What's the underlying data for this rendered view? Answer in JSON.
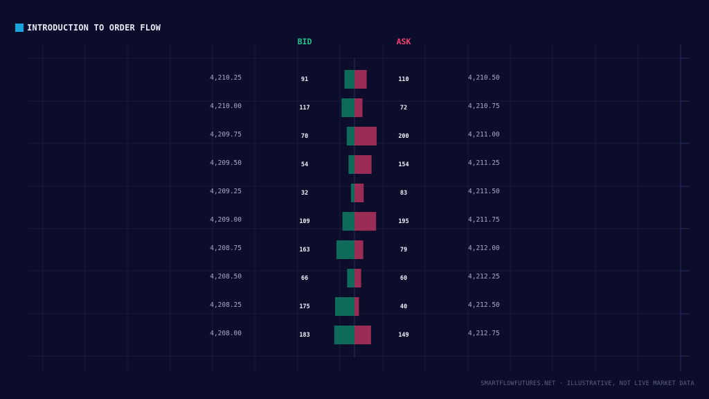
{
  "title": "INTRODUCTION TO ORDER FLOW",
  "footer": "SMARTFLOWFUTURES.NET · ILLUSTRATIVE, NOT LIVE MARKET DATA",
  "colors": {
    "background": "#0b0d2b",
    "accent": "#1aa3d9",
    "bid": "#0f6b5a",
    "ask": "#9a2c55",
    "bid_header": "#22c08a",
    "ask_header": "#f0406e",
    "grid": "#191c3e",
    "price_text": "#a9abc6",
    "volume_text": "#eef0fa"
  },
  "chart_data": {
    "type": "bar",
    "bid_label": "BID",
    "ask_label": "ASK",
    "rows": [
      {
        "bid_price": "4,210.25",
        "bid": 91,
        "ask": 110,
        "ask_price": "4,210.50"
      },
      {
        "bid_price": "4,210.00",
        "bid": 117,
        "ask": 72,
        "ask_price": "4,210.75"
      },
      {
        "bid_price": "4,209.75",
        "bid": 70,
        "ask": 200,
        "ask_price": "4,211.00"
      },
      {
        "bid_price": "4,209.50",
        "bid": 54,
        "ask": 154,
        "ask_price": "4,211.25"
      },
      {
        "bid_price": "4,209.25",
        "bid": 32,
        "ask": 83,
        "ask_price": "4,211.50"
      },
      {
        "bid_price": "4,209.00",
        "bid": 109,
        "ask": 195,
        "ask_price": "4,211.75"
      },
      {
        "bid_price": "4,208.75",
        "bid": 163,
        "ask": 79,
        "ask_price": "4,212.00"
      },
      {
        "bid_price": "4,208.50",
        "bid": 66,
        "ask": 60,
        "ask_price": "4,212.25"
      },
      {
        "bid_price": "4,208.25",
        "bid": 175,
        "ask": 40,
        "ask_price": "4,212.50"
      },
      {
        "bid_price": "4,208.00",
        "bid": 183,
        "ask": 149,
        "ask_price": "4,212.75"
      }
    ],
    "grid": true
  }
}
